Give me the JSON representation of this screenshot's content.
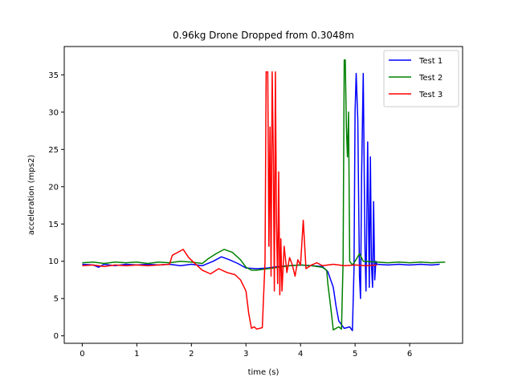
{
  "chart_data": {
    "type": "line",
    "title": "0.96kg Drone Dropped from 0.3048m",
    "xlabel": "time (s)",
    "ylabel": "acceleration (mps2)",
    "xlim": [
      -0.33,
      6.97
    ],
    "ylim": [
      -1.0,
      38.8
    ],
    "xticks": [
      0,
      1,
      2,
      3,
      4,
      5,
      6
    ],
    "yticks": [
      0,
      5,
      10,
      15,
      20,
      25,
      30,
      35
    ],
    "grid": false,
    "legend_position": "top-right",
    "series": [
      {
        "name": "Test 1",
        "color": "#0000ff",
        "points": [
          [
            0,
            9.6
          ],
          [
            0.2,
            9.5
          ],
          [
            0.3,
            9.2
          ],
          [
            0.4,
            9.6
          ],
          [
            0.6,
            9.4
          ],
          [
            0.8,
            9.6
          ],
          [
            1.0,
            9.5
          ],
          [
            1.2,
            9.6
          ],
          [
            1.4,
            9.5
          ],
          [
            1.6,
            9.6
          ],
          [
            1.8,
            9.4
          ],
          [
            2.0,
            9.6
          ],
          [
            2.2,
            9.4
          ],
          [
            2.4,
            10.0
          ],
          [
            2.55,
            10.6
          ],
          [
            2.7,
            10.2
          ],
          [
            2.85,
            9.7
          ],
          [
            3.0,
            9.1
          ],
          [
            3.2,
            9.0
          ],
          [
            3.4,
            9.1
          ],
          [
            3.6,
            9.3
          ],
          [
            3.8,
            9.4
          ],
          [
            4.0,
            9.5
          ],
          [
            4.2,
            9.4
          ],
          [
            4.4,
            9.3
          ],
          [
            4.5,
            8.6
          ],
          [
            4.6,
            6.5
          ],
          [
            4.65,
            4.0
          ],
          [
            4.7,
            2.0
          ],
          [
            4.75,
            1.5
          ],
          [
            4.8,
            1.0
          ],
          [
            4.9,
            1.2
          ],
          [
            4.95,
            0.7
          ],
          [
            4.98,
            9.0
          ],
          [
            5.0,
            30.0
          ],
          [
            5.02,
            35.2
          ],
          [
            5.05,
            29.0
          ],
          [
            5.08,
            8.0
          ],
          [
            5.1,
            5.0
          ],
          [
            5.12,
            22.0
          ],
          [
            5.15,
            35.2
          ],
          [
            5.18,
            12.0
          ],
          [
            5.2,
            6.0
          ],
          [
            5.23,
            26.0
          ],
          [
            5.26,
            6.5
          ],
          [
            5.28,
            24.0
          ],
          [
            5.3,
            9.5
          ],
          [
            5.32,
            6.5
          ],
          [
            5.34,
            18.0
          ],
          [
            5.36,
            7.5
          ],
          [
            5.38,
            10.0
          ],
          [
            5.4,
            9.6
          ],
          [
            5.6,
            9.5
          ],
          [
            5.8,
            9.6
          ],
          [
            6.0,
            9.5
          ],
          [
            6.2,
            9.6
          ],
          [
            6.4,
            9.5
          ],
          [
            6.55,
            9.6
          ]
        ]
      },
      {
        "name": "Test 2",
        "color": "#008000",
        "points": [
          [
            0,
            9.8
          ],
          [
            0.2,
            9.9
          ],
          [
            0.4,
            9.7
          ],
          [
            0.6,
            9.9
          ],
          [
            0.8,
            9.8
          ],
          [
            1.0,
            9.9
          ],
          [
            1.2,
            9.7
          ],
          [
            1.4,
            9.9
          ],
          [
            1.6,
            9.8
          ],
          [
            1.8,
            10.0
          ],
          [
            2.0,
            9.9
          ],
          [
            2.2,
            9.7
          ],
          [
            2.3,
            10.3
          ],
          [
            2.45,
            11.0
          ],
          [
            2.6,
            11.6
          ],
          [
            2.75,
            11.2
          ],
          [
            2.9,
            10.2
          ],
          [
            3.0,
            9.2
          ],
          [
            3.1,
            8.8
          ],
          [
            3.2,
            8.8
          ],
          [
            3.4,
            9.0
          ],
          [
            3.6,
            9.2
          ],
          [
            3.8,
            9.4
          ],
          [
            4.0,
            9.5
          ],
          [
            4.2,
            9.4
          ],
          [
            4.4,
            9.2
          ],
          [
            4.48,
            8.8
          ],
          [
            4.5,
            7.0
          ],
          [
            4.55,
            4.0
          ],
          [
            4.6,
            0.8
          ],
          [
            4.65,
            1.0
          ],
          [
            4.7,
            1.2
          ],
          [
            4.75,
            0.9
          ],
          [
            4.78,
            10.0
          ],
          [
            4.8,
            37.0
          ],
          [
            4.82,
            37.0
          ],
          [
            4.84,
            28.0
          ],
          [
            4.86,
            24.0
          ],
          [
            4.88,
            30.0
          ],
          [
            4.9,
            10.0
          ],
          [
            4.95,
            9.5
          ],
          [
            5.0,
            10.0
          ],
          [
            5.08,
            11.0
          ],
          [
            5.15,
            10.0
          ],
          [
            5.4,
            9.9
          ],
          [
            5.6,
            9.8
          ],
          [
            5.8,
            9.9
          ],
          [
            6.0,
            9.8
          ],
          [
            6.2,
            9.9
          ],
          [
            6.4,
            9.8
          ],
          [
            6.65,
            9.9
          ]
        ]
      },
      {
        "name": "Test 3",
        "color": "#ff0000",
        "points": [
          [
            0,
            9.4
          ],
          [
            0.2,
            9.5
          ],
          [
            0.4,
            9.3
          ],
          [
            0.6,
            9.5
          ],
          [
            0.8,
            9.4
          ],
          [
            1.0,
            9.5
          ],
          [
            1.2,
            9.4
          ],
          [
            1.4,
            9.5
          ],
          [
            1.6,
            9.6
          ],
          [
            1.65,
            10.8
          ],
          [
            1.75,
            11.2
          ],
          [
            1.85,
            11.6
          ],
          [
            1.95,
            10.5
          ],
          [
            2.05,
            9.8
          ],
          [
            2.2,
            8.8
          ],
          [
            2.35,
            8.3
          ],
          [
            2.5,
            9.0
          ],
          [
            2.65,
            8.5
          ],
          [
            2.8,
            8.2
          ],
          [
            2.9,
            7.5
          ],
          [
            3.0,
            6.0
          ],
          [
            3.05,
            3.0
          ],
          [
            3.1,
            1.0
          ],
          [
            3.15,
            1.2
          ],
          [
            3.2,
            0.9
          ],
          [
            3.3,
            1.1
          ],
          [
            3.35,
            10.0
          ],
          [
            3.37,
            35.4
          ],
          [
            3.4,
            35.4
          ],
          [
            3.42,
            12.0
          ],
          [
            3.44,
            28.0
          ],
          [
            3.46,
            8.0
          ],
          [
            3.48,
            35.4
          ],
          [
            3.5,
            25.0
          ],
          [
            3.52,
            6.0
          ],
          [
            3.54,
            35.4
          ],
          [
            3.56,
            15.0
          ],
          [
            3.58,
            7.0
          ],
          [
            3.6,
            22.0
          ],
          [
            3.62,
            5.5
          ],
          [
            3.64,
            13.0
          ],
          [
            3.66,
            6.0
          ],
          [
            3.7,
            12.0
          ],
          [
            3.75,
            8.5
          ],
          [
            3.8,
            10.5
          ],
          [
            3.85,
            9.5
          ],
          [
            3.9,
            8.0
          ],
          [
            3.95,
            10.2
          ],
          [
            4.0,
            9.5
          ],
          [
            4.05,
            15.5
          ],
          [
            4.1,
            9.0
          ],
          [
            4.2,
            9.5
          ],
          [
            4.3,
            9.8
          ],
          [
            4.4,
            9.4
          ],
          [
            4.6,
            9.6
          ],
          [
            4.8,
            9.4
          ],
          [
            5.0,
            9.5
          ],
          [
            5.2,
            9.4
          ],
          [
            5.4,
            9.5
          ]
        ]
      }
    ]
  }
}
